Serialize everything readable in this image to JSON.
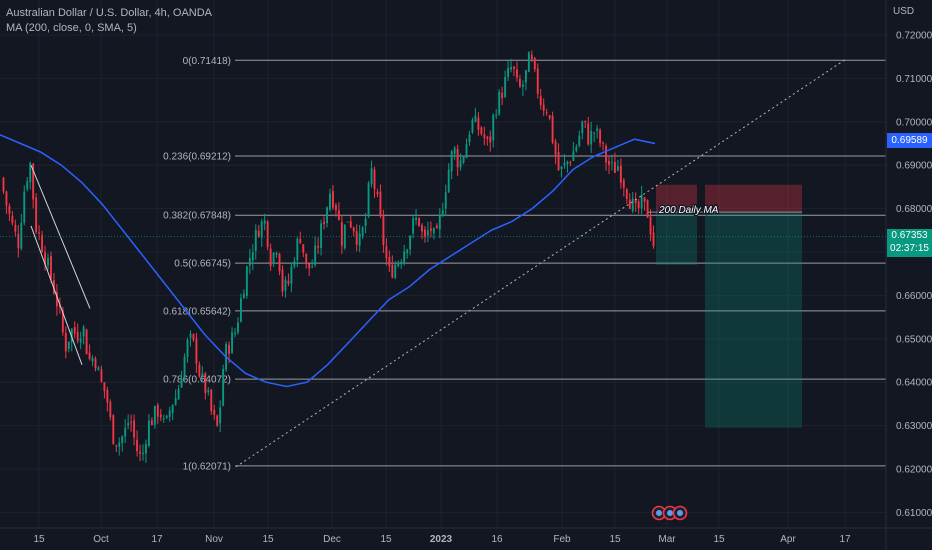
{
  "header": {
    "symbol_line": "Australian Dollar / U.S. Dollar, 4h, OANDA",
    "indicator_line": "MA (200, close, 0, SMA, 5)"
  },
  "axis": {
    "unit": "USD",
    "y_ticks": [
      "0.72000",
      "0.71000",
      "0.70000",
      "0.69000",
      "0.68000",
      "0.67000",
      "0.66000",
      "0.65000",
      "0.64000",
      "0.63000",
      "0.62000",
      "0.61000"
    ],
    "x_ticks": [
      "15",
      "Oct",
      "17",
      "Nov",
      "15",
      "Dec",
      "15",
      "2023",
      "16",
      "Feb",
      "15",
      "Mar",
      "15",
      "Apr",
      "17"
    ]
  },
  "price_tags": {
    "ma_value": "0.69589",
    "last_price": "0.67353",
    "countdown": "02:37:15"
  },
  "colors": {
    "background": "#131722",
    "up_candle": "#089981",
    "down_candle": "#f23645",
    "ma_line": "#2962ff",
    "fib_line": "#b2b5be",
    "price_tag_blue": "#2962ff",
    "price_tag_green": "#089981"
  },
  "chart_data": {
    "type": "candlestick",
    "title": "Australian Dollar / U.S. Dollar, 4h, OANDA",
    "y_axis_label": "USD",
    "ylim": [
      0.6075,
      0.7225
    ],
    "fib_levels": [
      {
        "label": "0(0.71418)",
        "value": 0.71418
      },
      {
        "label": "0.236(0.69212)",
        "value": 0.69212
      },
      {
        "label": "0.382(0.67848)",
        "value": 0.67848
      },
      {
        "label": "0.5(0.66745)",
        "value": 0.66745
      },
      {
        "label": "0.618(0.65642)",
        "value": 0.65642
      },
      {
        "label": "0.786(0.64072)",
        "value": 0.64072
      },
      {
        "label": "1(0.62071)",
        "value": 0.62071
      }
    ],
    "price_path": [
      0.687,
      0.681,
      0.676,
      0.672,
      0.684,
      0.691,
      0.676,
      0.672,
      0.667,
      0.662,
      0.656,
      0.648,
      0.652,
      0.651,
      0.653,
      0.645,
      0.646,
      0.64,
      0.637,
      0.628,
      0.626,
      0.628,
      0.632,
      0.625,
      0.622,
      0.63,
      0.632,
      0.634,
      0.629,
      0.635,
      0.637,
      0.644,
      0.65,
      0.648,
      0.641,
      0.638,
      0.632,
      0.629,
      0.646,
      0.649,
      0.652,
      0.66,
      0.667,
      0.672,
      0.676,
      0.677,
      0.668,
      0.672,
      0.661,
      0.663,
      0.67,
      0.674,
      0.666,
      0.667,
      0.672,
      0.678,
      0.684,
      0.681,
      0.673,
      0.678,
      0.676,
      0.672,
      0.677,
      0.689,
      0.682,
      0.673,
      0.665,
      0.667,
      0.669,
      0.672,
      0.676,
      0.678,
      0.672,
      0.676,
      0.672,
      0.68,
      0.688,
      0.694,
      0.69,
      0.694,
      0.7,
      0.699,
      0.697,
      0.694,
      0.703,
      0.706,
      0.71,
      0.713,
      0.707,
      0.709,
      0.715,
      0.709,
      0.704,
      0.703,
      0.695,
      0.688,
      0.69,
      0.692,
      0.695,
      0.7,
      0.696,
      0.698,
      0.695,
      0.691,
      0.689,
      0.69,
      0.686,
      0.682,
      0.679,
      0.681,
      0.679,
      0.672
    ],
    "ma_200": [
      0.697,
      0.695,
      0.693,
      0.69,
      0.686,
      0.681,
      0.675,
      0.669,
      0.663,
      0.657,
      0.651,
      0.646,
      0.642,
      0.64,
      0.639,
      0.64,
      0.644,
      0.649,
      0.654,
      0.659,
      0.662,
      0.666,
      0.669,
      0.672,
      0.675,
      0.677,
      0.68,
      0.684,
      0.689,
      0.692,
      0.694,
      0.696,
      0.695
    ],
    "channel_upper": [
      [
        0.69,
        "Sep 16"
      ],
      [
        0.658,
        "Sep 26"
      ]
    ],
    "trendline": {
      "from": [
        0.6205,
        "Nov 8"
      ],
      "to": [
        0.714,
        "Apr 5"
      ],
      "style": "dotted"
    },
    "annotations": [
      {
        "text": "200 Daily MA",
        "value": 0.6792
      }
    ],
    "short_position": {
      "entry": 0.6792,
      "stop": 0.6855,
      "target": 0.6295
    },
    "last_price": 0.67353,
    "ma_last": 0.69589
  }
}
